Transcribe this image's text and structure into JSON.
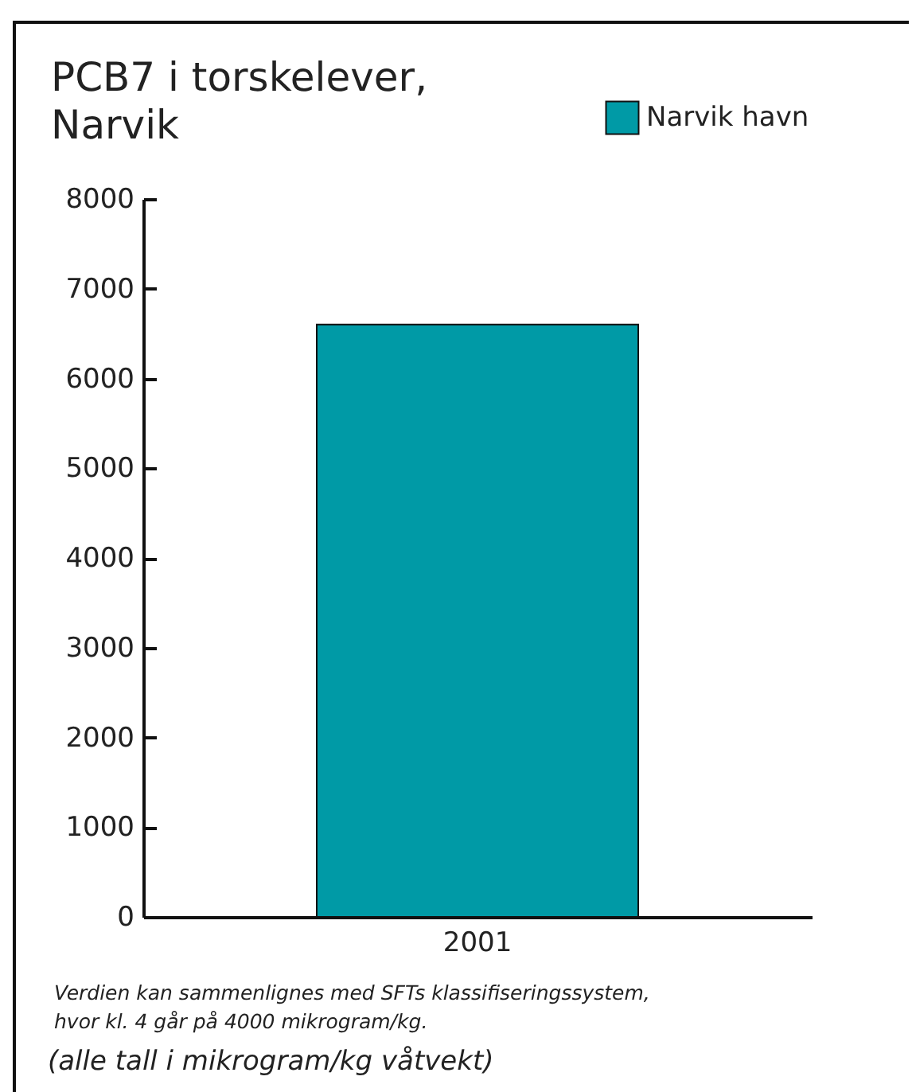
{
  "chart_data": {
    "type": "bar",
    "title": "PCB7 i torskelever, Narvik",
    "categories": [
      "2001"
    ],
    "series": [
      {
        "name": "Narvik havn",
        "color": "#009aa6",
        "values": [
          6600
        ]
      }
    ],
    "ylim": [
      0,
      8000
    ],
    "yticks": [
      0,
      1000,
      2000,
      3000,
      4000,
      5000,
      6000,
      7000,
      8000
    ],
    "legend": "top right",
    "annotations": [
      "Verdien kan sammenlignes med SFTs klassifiseringssystem, hvor kl. 4 går på 4000 mikrogram/kg.",
      "(alle tall i mikrogram/kg våtvekt)"
    ]
  }
}
